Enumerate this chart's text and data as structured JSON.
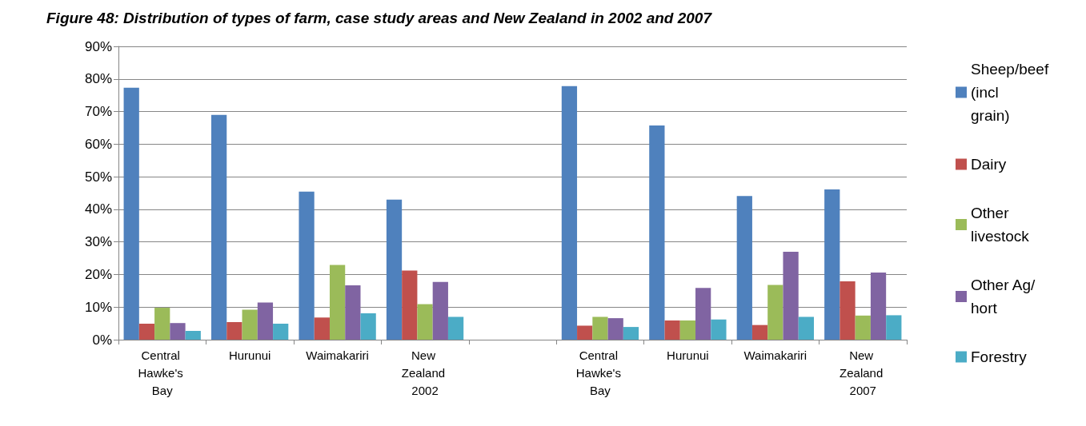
{
  "chart_data": {
    "type": "bar",
    "title": "Figure 48: Distribution of types of farm, case study areas and New Zealand in 2002 and 2007",
    "categories": [
      "Central Hawke's Bay",
      "Hurunui",
      "Waimakariri",
      "New Zealand 2002",
      null,
      "Central Hawke's Bay",
      "Hurunui",
      "Waimakariri",
      "New Zealand 2007"
    ],
    "series": [
      {
        "name": "Sheep/beef (incl grain)",
        "color": "#4f81bd",
        "values": [
          77.3,
          69,
          45.4,
          43,
          null,
          77.8,
          65.7,
          44.1,
          46.1
        ]
      },
      {
        "name": "Dairy",
        "color": "#c0504d",
        "values": [
          4.9,
          5.4,
          6.8,
          21.2,
          null,
          4.3,
          5.9,
          4.5,
          17.9
        ]
      },
      {
        "name": "Other livestock",
        "color": "#9bbb59",
        "values": [
          9.8,
          9.2,
          22.9,
          10.9,
          null,
          7.0,
          5.9,
          16.8,
          7.4
        ]
      },
      {
        "name": "Other Ag/hort",
        "color": "#8064a2",
        "values": [
          5.1,
          11.4,
          16.7,
          17.7,
          null,
          6.6,
          15.9,
          27.0,
          20.6
        ]
      },
      {
        "name": "Forestry",
        "color": "#4bacc6",
        "values": [
          2.7,
          4.9,
          8.1,
          7.0,
          null,
          3.9,
          6.2,
          7.0,
          7.5
        ]
      }
    ],
    "ylim": [
      0,
      90
    ],
    "yticks": [
      {
        "value": 0,
        "label": "0%"
      },
      {
        "value": 10,
        "label": "10%"
      },
      {
        "value": 20,
        "label": "20%"
      },
      {
        "value": 30,
        "label": "30%"
      },
      {
        "value": 40,
        "label": "40%"
      },
      {
        "value": 50,
        "label": "50%"
      },
      {
        "value": 60,
        "label": "60%"
      },
      {
        "value": 70,
        "label": "70%"
      },
      {
        "value": 80,
        "label": "80%"
      },
      {
        "value": 90,
        "label": "90%"
      }
    ],
    "grid": "y",
    "legend": "right"
  }
}
